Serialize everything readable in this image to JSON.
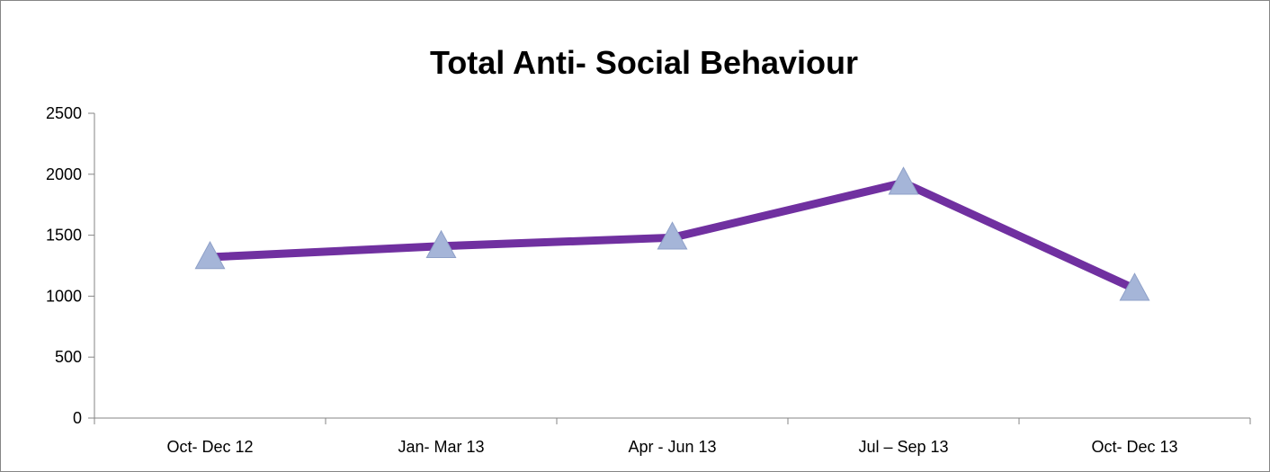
{
  "chart_data": {
    "type": "line",
    "title": "Total Anti- Social Behaviour",
    "xlabel": "",
    "ylabel": "",
    "categories": [
      "Oct- Dec 12",
      "Jan- Mar 13",
      "Apr - Jun 13",
      "Jul – Sep 13",
      "Oct- Dec 13"
    ],
    "series": [
      {
        "values": [
          1320,
          1410,
          1480,
          1930,
          1060
        ]
      }
    ],
    "ylim": [
      0,
      2500
    ],
    "yticks": [
      0,
      500,
      1000,
      1500,
      2000,
      2500
    ],
    "grid": false,
    "legend": "none",
    "line_color": "#7030A0",
    "marker": "triangle",
    "marker_color": "#A5B5D8"
  }
}
